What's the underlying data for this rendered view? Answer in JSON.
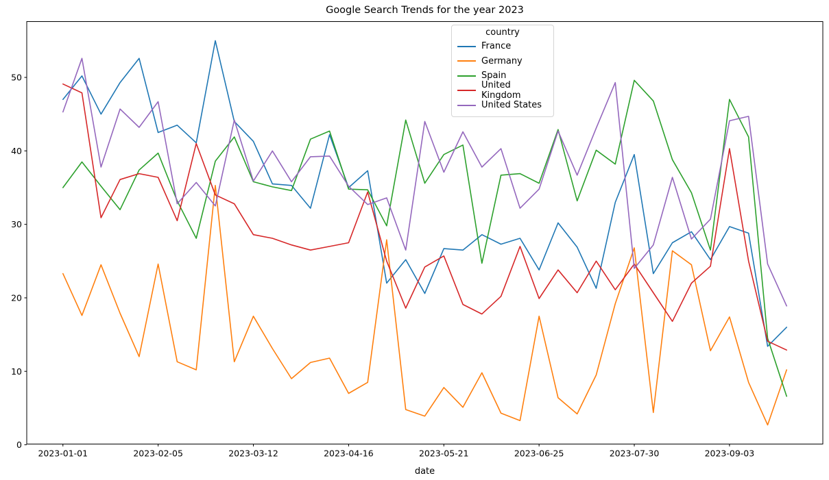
{
  "chart_data": {
    "type": "line",
    "title": "Google Search Trends for the year 2023",
    "xlabel": "date",
    "ylabel": "",
    "legend_title": "country",
    "legend_position": "upper center",
    "grid": false,
    "x": [
      "2023-01-01",
      "2023-01-08",
      "2023-01-15",
      "2023-01-22",
      "2023-01-29",
      "2023-02-05",
      "2023-02-12",
      "2023-02-19",
      "2023-02-26",
      "2023-03-05",
      "2023-03-12",
      "2023-03-19",
      "2023-03-26",
      "2023-04-02",
      "2023-04-09",
      "2023-04-16",
      "2023-04-23",
      "2023-04-30",
      "2023-05-07",
      "2023-05-14",
      "2023-05-21",
      "2023-05-28",
      "2023-06-04",
      "2023-06-11",
      "2023-06-18",
      "2023-06-25",
      "2023-07-02",
      "2023-07-09",
      "2023-07-16",
      "2023-07-23",
      "2023-07-30",
      "2023-08-06",
      "2023-08-13",
      "2023-08-20",
      "2023-08-27",
      "2023-09-03",
      "2023-09-10",
      "2023-09-17",
      "2023-09-24"
    ],
    "x_tick_indices": [
      0,
      5,
      10,
      15,
      20,
      25,
      30,
      35
    ],
    "x_tick_labels": [
      "2023-01-01",
      "2023-02-05",
      "2023-03-12",
      "2023-04-16",
      "2023-05-21",
      "2023-06-25",
      "2023-07-30",
      "2023-09-03"
    ],
    "y_ticks": [
      0,
      10,
      20,
      30,
      40,
      50
    ],
    "ylim": [
      0.1,
      57.6
    ],
    "xlim_weeks": [
      -1.9,
      39.9
    ],
    "series": [
      {
        "name": "France",
        "color": "#1f77b4",
        "values": [
          47,
          50.2,
          45,
          49.3,
          52.6,
          42.5,
          43.5,
          41.1,
          55,
          44,
          41.3,
          35.5,
          35.3,
          32.2,
          42.2,
          35,
          37.3,
          22,
          25.2,
          20.6,
          26.7,
          26.5,
          28.6,
          27.3,
          28.1,
          23.8,
          30.2,
          26.9,
          21.3,
          33,
          39.5,
          23.3,
          27.5,
          29,
          25.2,
          29.7,
          28.8,
          13.4,
          16
        ]
      },
      {
        "name": "Germany",
        "color": "#ff7f0e",
        "values": [
          23.3,
          17.6,
          24.5,
          17.9,
          12,
          24.6,
          11.3,
          10.2,
          35.3,
          11.3,
          17.5,
          13.1,
          9,
          11.2,
          11.8,
          7,
          8.5,
          27.9,
          4.8,
          3.9,
          7.8,
          5.1,
          9.8,
          4.3,
          3.3,
          17.5,
          6.4,
          4.2,
          9.5,
          19.2,
          26.8,
          4.4,
          26.4,
          24.5,
          12.8,
          17.4,
          8.5,
          2.7,
          10.2
        ]
      },
      {
        "name": "Spain",
        "color": "#2ca02c",
        "values": [
          35,
          38.5,
          35.2,
          32,
          37.4,
          39.7,
          33.2,
          28.1,
          38.6,
          41.9,
          35.8,
          35.1,
          34.6,
          41.6,
          42.7,
          34.8,
          34.7,
          29.8,
          44.2,
          35.6,
          39.5,
          40.8,
          24.7,
          36.7,
          36.9,
          35.6,
          42.9,
          33.2,
          40.1,
          38.2,
          49.6,
          46.8,
          38.8,
          34.3,
          26.5,
          47,
          41.9,
          14.5,
          6.6
        ]
      },
      {
        "name": "United Kingdom",
        "color": "#d62728",
        "values": [
          49.1,
          47.9,
          30.9,
          36.1,
          36.9,
          36.4,
          30.5,
          41,
          34,
          32.8,
          28.6,
          28.1,
          27.2,
          26.5,
          27,
          27.5,
          34.4,
          25,
          18.6,
          24.2,
          25.7,
          19.1,
          17.8,
          20.2,
          27,
          19.9,
          23.8,
          20.7,
          25,
          21.1,
          24.6,
          20.7,
          16.8,
          22,
          24.3,
          40.3,
          25,
          14.1,
          12.9
        ]
      },
      {
        "name": "United States",
        "color": "#9467bd",
        "values": [
          45.3,
          52.6,
          37.8,
          45.7,
          43.2,
          46.7,
          32.8,
          35.7,
          32.5,
          44.2,
          35.9,
          40,
          35.8,
          39.2,
          39.3,
          35.2,
          32.7,
          33.6,
          26.5,
          44,
          37.1,
          42.6,
          37.8,
          40.3,
          32.2,
          34.8,
          42.7,
          36.7,
          43.1,
          49.3,
          24,
          27.2,
          36.4,
          28,
          30.7,
          44.1,
          44.7,
          24.6,
          18.9
        ]
      }
    ]
  }
}
